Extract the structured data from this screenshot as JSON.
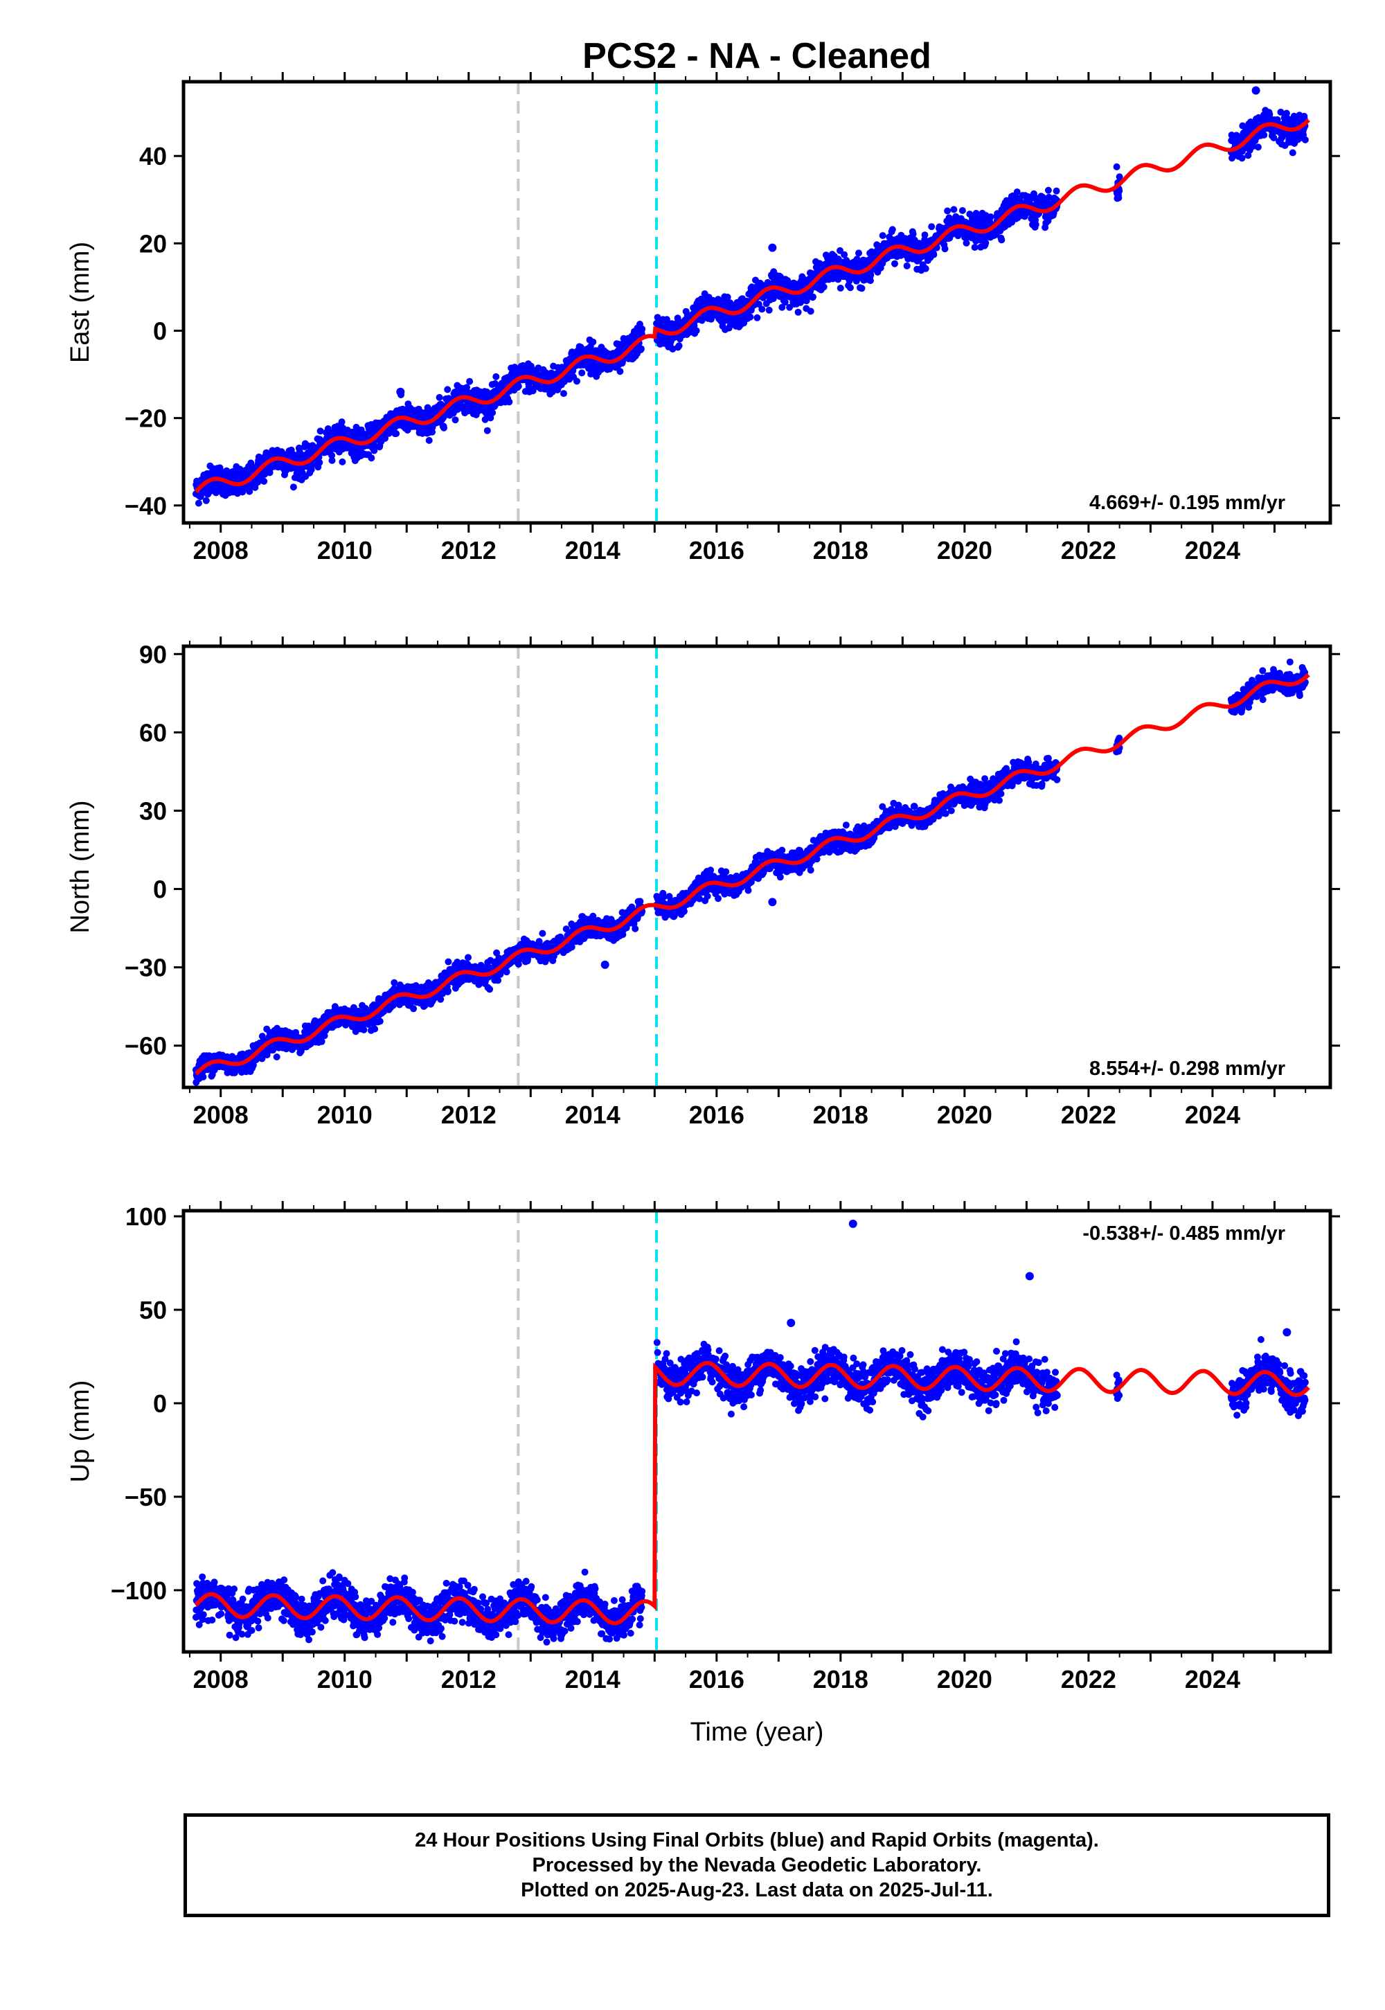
{
  "title": "PCS2  - NA - Cleaned",
  "xaxis_label": "Time (year)",
  "colors": {
    "data_points": "#0000ff",
    "model_fit": "#ff0000",
    "antenna_change_line": "#c8c8c8",
    "equipment_change_line": "#00e5ee"
  },
  "footer": {
    "line1": "24 Hour Positions Using Final Orbits (blue) and Rapid Orbits (magenta).",
    "line2": "Processed by the Nevada Geodetic Laboratory.",
    "line3": "Plotted on 2025-Aug-23. Last data on 2025-Jul-11."
  },
  "chart_data": [
    {
      "type": "scatter",
      "component": "East",
      "ylabel": "East (mm)",
      "rate": "4.669+/- 0.195 mm/yr",
      "xlim": [
        2007.4,
        2025.9
      ],
      "ylim": [
        -44,
        57
      ],
      "xticks": [
        2008,
        2010,
        2012,
        2014,
        2016,
        2018,
        2020,
        2022,
        2024
      ],
      "yticks": [
        -40,
        -20,
        0,
        20,
        40
      ],
      "vertical_lines": [
        {
          "x": 2012.8,
          "color": "#c8c8c8"
        },
        {
          "x": 2015.03,
          "color": "#00e5ee"
        }
      ],
      "trend": {
        "t0": 2015.0,
        "offset_before": -2.3,
        "offset_after": -0.5,
        "slope": 4.669,
        "annual_amp": 1.6
      },
      "data_segments": [
        [
          2007.6,
          2012.8
        ],
        [
          2012.8,
          2014.8
        ],
        [
          2015.03,
          2021.5
        ],
        [
          2022.45,
          2022.5
        ],
        [
          2024.3,
          2025.5
        ]
      ],
      "scatter": 1.6,
      "outliers": [
        {
          "x": 2016.9,
          "y": 19
        },
        {
          "x": 2010.9,
          "y": -14
        },
        {
          "x": 2024.7,
          "y": 55
        }
      ]
    },
    {
      "type": "scatter",
      "component": "North",
      "ylabel": "North (mm)",
      "rate": "8.554+/- 0.298 mm/yr",
      "xlim": [
        2007.4,
        2025.9
      ],
      "ylim": [
        -76,
        93
      ],
      "xticks": [
        2008,
        2010,
        2012,
        2014,
        2016,
        2018,
        2020,
        2022,
        2024
      ],
      "yticks": [
        -60,
        -30,
        0,
        30,
        60,
        90
      ],
      "vertical_lines": [
        {
          "x": 2012.8,
          "color": "#c8c8c8"
        },
        {
          "x": 2015.03,
          "color": "#00e5ee"
        }
      ],
      "trend": {
        "t0": 2015.0,
        "offset_before": -7.5,
        "offset_after": -7.5,
        "slope": 8.554,
        "annual_amp": 2.2
      },
      "data_segments": [
        [
          2007.6,
          2012.8
        ],
        [
          2012.8,
          2014.8
        ],
        [
          2015.03,
          2021.5
        ],
        [
          2022.45,
          2022.5
        ],
        [
          2024.3,
          2025.5
        ]
      ],
      "scatter": 2.0,
      "outliers": [
        {
          "x": 2016.9,
          "y": -5
        },
        {
          "x": 2014.2,
          "y": -29
        }
      ]
    },
    {
      "type": "scatter",
      "component": "Up",
      "ylabel": "Up (mm)",
      "rate": "-0.538+/- 0.485 mm/yr",
      "xlim": [
        2007.4,
        2025.9
      ],
      "ylim": [
        -133,
        103
      ],
      "xticks": [
        2008,
        2010,
        2012,
        2014,
        2016,
        2018,
        2020,
        2022,
        2024
      ],
      "yticks": [
        -100,
        -50,
        0,
        50,
        100
      ],
      "vertical_lines": [
        {
          "x": 2012.8,
          "color": "#c8c8c8"
        },
        {
          "x": 2015.03,
          "color": "#00e5ee"
        }
      ],
      "trend": {
        "t0": 2015.0,
        "offset_before": -112,
        "offset_after": 16,
        "slope": -0.538,
        "annual_amp": 6
      },
      "data_segments": [
        [
          2007.6,
          2012.8
        ],
        [
          2012.8,
          2014.8
        ],
        [
          2015.03,
          2021.5
        ],
        [
          2022.45,
          2022.5
        ],
        [
          2024.3,
          2025.5
        ]
      ],
      "scatter": 5.0,
      "outliers": [
        {
          "x": 2018.2,
          "y": 96
        },
        {
          "x": 2021.05,
          "y": 68
        },
        {
          "x": 2025.2,
          "y": 38
        },
        {
          "x": 2017.2,
          "y": 43
        }
      ]
    }
  ]
}
